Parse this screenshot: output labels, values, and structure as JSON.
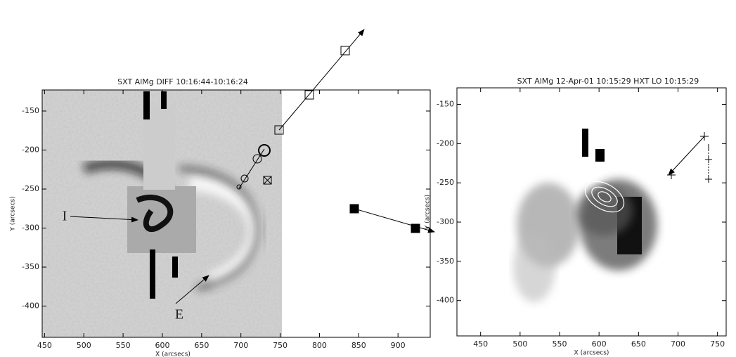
{
  "chart_data": [
    {
      "type": "image",
      "title": "SXT AlMg DIFF 10:16:44-10:16:24",
      "xlabel": "X (arcsecs)",
      "ylabel": "Y (arcsecs)",
      "xlim": [
        447,
        941
      ],
      "ylim": [
        -440,
        -123
      ],
      "xticks": [
        450,
        500,
        550,
        600,
        650,
        700,
        750,
        800,
        850,
        900
      ],
      "yticks": [
        -150,
        -200,
        -250,
        -300,
        -350,
        -400
      ],
      "annotations": [
        "I",
        "E"
      ]
    },
    {
      "type": "image",
      "title": "SXT AlMg 12-Apr-01 10:15:29 HXT LO 10:15:29",
      "xlabel": "X (arcsecs)",
      "ylabel": "Y (arcsecs)",
      "xlim": [
        420,
        761
      ],
      "ylim": [
        -445,
        -129
      ],
      "xticks": [
        450,
        500,
        550,
        600,
        650,
        700,
        750
      ],
      "yticks": [
        -150,
        -200,
        -250,
        -300,
        -350,
        -400
      ]
    }
  ]
}
